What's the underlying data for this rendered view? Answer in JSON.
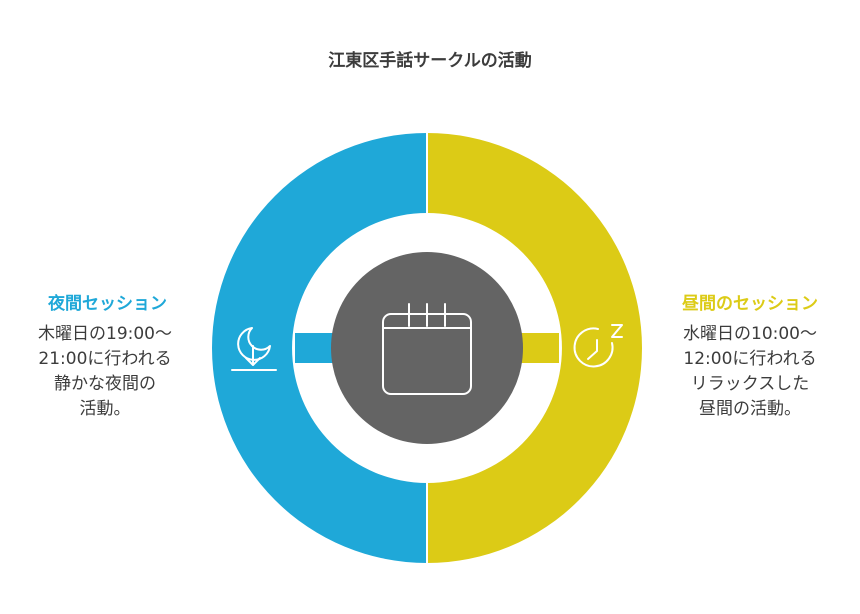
{
  "title": "江東区手話サークルの活動",
  "colors": {
    "night": "#1fa8d8",
    "day": "#dccb16",
    "center": "#646464",
    "title_text": "#3c3c3c"
  },
  "night": {
    "title": "夜間セッション",
    "desc_lines": [
      "木曜日の19:00〜",
      "21:00に行われる",
      "静かな夜間の",
      "活動。"
    ],
    "icon": "moon-download-icon"
  },
  "day": {
    "title": "昼間のセッション",
    "desc_lines": [
      "水曜日の10:00〜",
      "12:00に行われる",
      "リラックスした",
      "昼間の活動。"
    ],
    "icon": "clock-sleep-icon"
  },
  "center": {
    "icon": "calendar-icon"
  }
}
